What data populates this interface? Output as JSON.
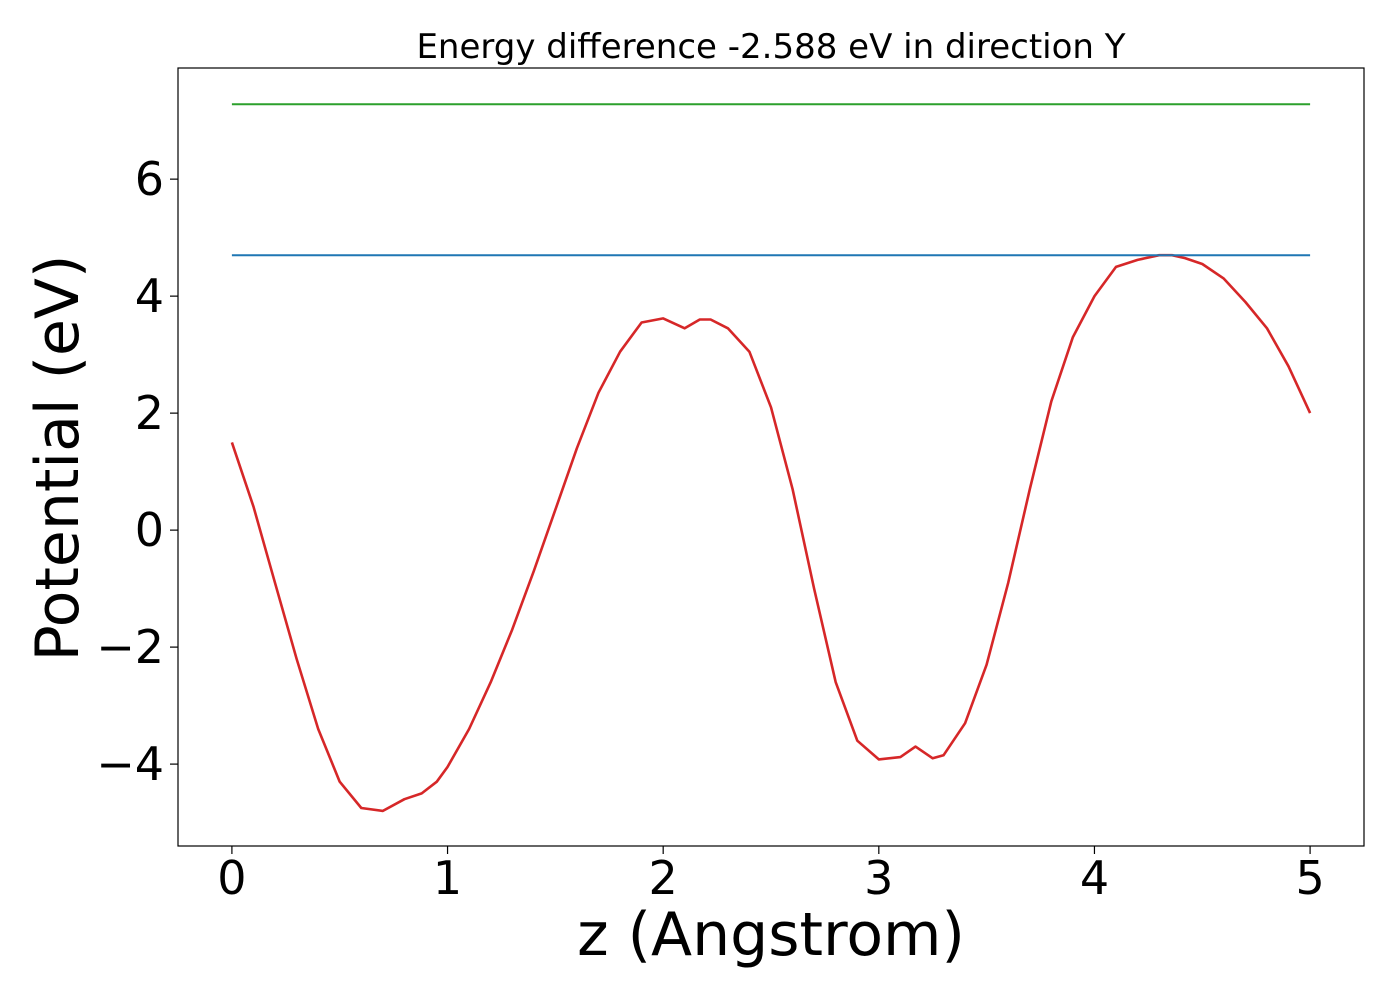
{
  "chart_data": {
    "type": "line",
    "title": "Energy difference -2.588 eV in direction Y",
    "xlabel": "z (Angstrom)",
    "ylabel": "Potential (eV)",
    "xlim": [
      -0.25,
      5.25
    ],
    "ylim": [
      -5.4,
      7.9
    ],
    "x_ticks": [
      0,
      1,
      2,
      3,
      4,
      5
    ],
    "x_tick_labels": [
      "0",
      "1",
      "2",
      "3",
      "4",
      "5"
    ],
    "y_ticks": [
      -4,
      -2,
      0,
      2,
      4,
      6
    ],
    "y_tick_labels": [
      "−4",
      "−2",
      "0",
      "2",
      "4",
      "6"
    ],
    "grid": false,
    "series": [
      {
        "color": "#d62728",
        "x": [
          0,
          0.1,
          0.2,
          0.3,
          0.4,
          0.5,
          0.6,
          0.7,
          0.8,
          0.88,
          0.95,
          1.0,
          1.1,
          1.2,
          1.3,
          1.4,
          1.5,
          1.6,
          1.7,
          1.8,
          1.9,
          2.0,
          2.1,
          2.17,
          2.22,
          2.3,
          2.4,
          2.5,
          2.6,
          2.7,
          2.8,
          2.9,
          3.0,
          3.1,
          3.17,
          3.25,
          3.3,
          3.4,
          3.5,
          3.6,
          3.7,
          3.8,
          3.9,
          4.0,
          4.1,
          4.2,
          4.3,
          4.36,
          4.42,
          4.5,
          4.6,
          4.7,
          4.8,
          4.9,
          5.0
        ],
        "y": [
          1.5,
          0.4,
          -0.9,
          -2.2,
          -3.4,
          -4.3,
          -4.75,
          -4.8,
          -4.6,
          -4.5,
          -4.3,
          -4.05,
          -3.4,
          -2.6,
          -1.7,
          -0.7,
          0.35,
          1.4,
          2.35,
          3.05,
          3.55,
          3.62,
          3.45,
          3.6,
          3.6,
          3.45,
          3.05,
          2.1,
          0.7,
          -1.0,
          -2.6,
          -3.6,
          -3.92,
          -3.88,
          -3.7,
          -3.9,
          -3.85,
          -3.3,
          -2.3,
          -0.9,
          0.7,
          2.2,
          3.3,
          4.0,
          4.5,
          4.62,
          4.7,
          4.7,
          4.65,
          4.55,
          4.3,
          3.9,
          3.45,
          2.8,
          2.0
        ]
      },
      {
        "color": "#1f77b4",
        "x": [
          0,
          5
        ],
        "y": [
          4.7,
          4.7
        ]
      },
      {
        "color": "#2ca02c",
        "x": [
          0,
          5
        ],
        "y": [
          7.28,
          7.28
        ]
      }
    ]
  }
}
